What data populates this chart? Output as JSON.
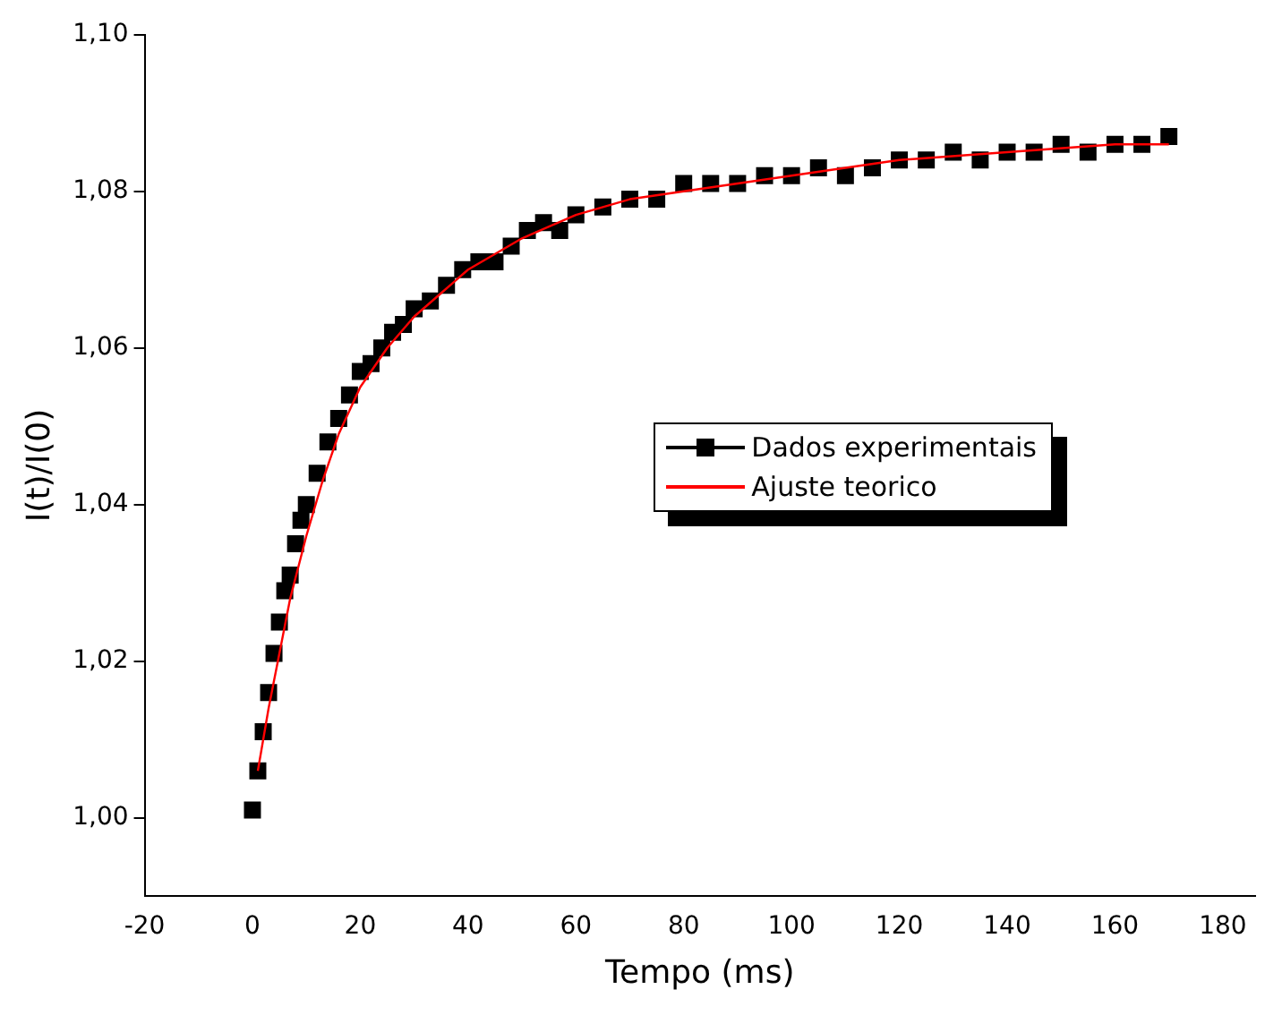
{
  "chart_data": {
    "type": "scatter",
    "xlabel": "Tempo (ms)",
    "ylabel": "I(t)/I(0)",
    "xlim": [
      -20,
      186
    ],
    "ylim": [
      0.99,
      1.1
    ],
    "xticks": [
      {
        "value": -20,
        "label": "-20"
      },
      {
        "value": 0,
        "label": "0"
      },
      {
        "value": 20,
        "label": "20"
      },
      {
        "value": 40,
        "label": "40"
      },
      {
        "value": 60,
        "label": "60"
      },
      {
        "value": 80,
        "label": "80"
      },
      {
        "value": 100,
        "label": "100"
      },
      {
        "value": 120,
        "label": "120"
      },
      {
        "value": 140,
        "label": "140"
      },
      {
        "value": 160,
        "label": "160"
      },
      {
        "value": 180,
        "label": "180"
      }
    ],
    "yticks": [
      {
        "value": 1,
        "label": "1,00"
      },
      {
        "value": 1.02,
        "label": "1,02"
      },
      {
        "value": 1.04,
        "label": "1,04"
      },
      {
        "value": 1.06,
        "label": "1,06"
      },
      {
        "value": 1.08,
        "label": "1,08"
      },
      {
        "value": 1.1,
        "label": "1,10"
      }
    ],
    "grid": false,
    "legend": "right",
    "series": [
      {
        "name": "Dados experimentais",
        "type": "scatter",
        "marker": "square",
        "color": "#000000",
        "x": [
          0,
          1,
          2,
          3,
          4,
          5,
          6,
          7,
          8,
          9,
          10,
          12,
          14,
          16,
          18,
          20,
          22,
          24,
          26,
          28,
          30,
          33,
          36,
          39,
          42,
          45,
          48,
          51,
          54,
          57,
          60,
          65,
          70,
          75,
          80,
          85,
          90,
          95,
          100,
          105,
          110,
          115,
          120,
          125,
          130,
          135,
          140,
          145,
          150,
          155,
          160,
          165,
          170
        ],
        "values": [
          1.001,
          1.006,
          1.011,
          1.016,
          1.021,
          1.025,
          1.029,
          1.031,
          1.035,
          1.038,
          1.04,
          1.044,
          1.048,
          1.051,
          1.054,
          1.057,
          1.058,
          1.06,
          1.062,
          1.063,
          1.065,
          1.066,
          1.068,
          1.07,
          1.071,
          1.071,
          1.073,
          1.075,
          1.076,
          1.075,
          1.077,
          1.078,
          1.079,
          1.079,
          1.081,
          1.081,
          1.081,
          1.082,
          1.082,
          1.083,
          1.082,
          1.083,
          1.084,
          1.084,
          1.085,
          1.084,
          1.085,
          1.085,
          1.086,
          1.085,
          1.086,
          1.086,
          1.087
        ]
      },
      {
        "name": "Ajuste teorico",
        "type": "line",
        "marker": "none",
        "color": "#ff0000",
        "x": [
          1,
          3,
          5,
          7,
          10,
          13,
          16,
          20,
          25,
          30,
          35,
          40,
          50,
          60,
          70,
          80,
          90,
          100,
          120,
          140,
          160,
          170
        ],
        "values": [
          1.006,
          1.014,
          1.021,
          1.028,
          1.036,
          1.043,
          1.049,
          1.055,
          1.06,
          1.064,
          1.067,
          1.07,
          1.074,
          1.077,
          1.079,
          1.08,
          1.081,
          1.082,
          1.084,
          1.085,
          1.086,
          1.086
        ]
      }
    ]
  }
}
